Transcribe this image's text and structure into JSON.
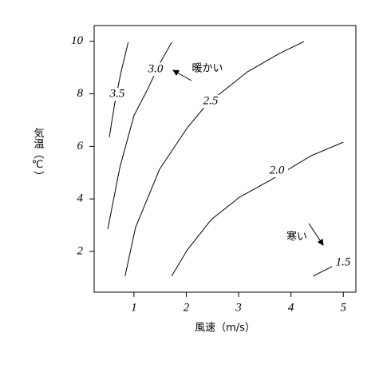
{
  "chart_data": {
    "type": "contour",
    "x_label": "風速（m/s）",
    "y_label": "気温（℃）",
    "xlim": [
      0.24,
      5.24
    ],
    "ylim": [
      0.45,
      10.6
    ],
    "xticks": [
      1,
      2,
      3,
      4,
      5
    ],
    "yticks": [
      2,
      4,
      6,
      8,
      10
    ],
    "series": [
      {
        "name": "3.5",
        "color": "#000000",
        "x": [
          0.53,
          0.63,
          0.75,
          0.89
        ],
        "values": [
          6.35,
          7.6,
          8.8,
          9.96
        ]
      },
      {
        "name": "3.0",
        "color": "#000000",
        "x": [
          0.5,
          0.73,
          1.0,
          1.26,
          1.49,
          1.72
        ],
        "values": [
          2.85,
          5.19,
          7.17,
          8.17,
          9.14,
          9.96
        ]
      },
      {
        "name": "2.5",
        "color": "#000000",
        "x": [
          0.83,
          1.03,
          1.49,
          2.02,
          2.4,
          3.17,
          3.78,
          4.25
        ],
        "values": [
          1.06,
          2.91,
          5.13,
          6.71,
          7.62,
          8.84,
          9.54,
          9.99
        ]
      },
      {
        "name": "2.0",
        "color": "#000000",
        "x": [
          1.72,
          2.02,
          2.48,
          3.02,
          3.63,
          4.39,
          5.0
        ],
        "values": [
          1.06,
          2.06,
          3.22,
          4.07,
          4.74,
          5.65,
          6.16
        ]
      },
      {
        "name": "1.5",
        "color": "#000000",
        "x": [
          4.42,
          5.0
        ],
        "values": [
          1.06,
          1.64
        ]
      }
    ],
    "annotations": [
      "暖かい",
      "寒い"
    ]
  }
}
